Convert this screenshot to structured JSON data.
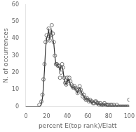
{
  "chart_data": {
    "type": "scatter",
    "x_label": "percent E(top rank)/Elatt",
    "y_label": "N. of occurrences",
    "xlim": [
      0,
      100
    ],
    "ylim": [
      0,
      60
    ],
    "xticks": [
      0,
      20,
      40,
      60,
      80,
      100
    ],
    "yticks": [
      0,
      10,
      20,
      30,
      40,
      50,
      60
    ],
    "grid": false,
    "series": [
      {
        "type": "line",
        "color": "#333333",
        "line_style": "solid",
        "x": [
          0,
          5,
          10,
          13,
          14,
          15,
          16,
          17,
          18,
          19,
          20,
          21,
          22,
          23,
          24,
          24.5,
          25,
          26,
          27,
          28,
          29,
          30,
          31,
          32,
          33,
          34,
          35,
          36,
          37,
          38,
          39,
          40,
          40.5,
          41,
          42,
          42.5,
          43,
          44,
          45,
          46,
          47,
          48,
          49,
          50,
          51,
          52,
          53,
          54,
          55,
          56,
          57,
          58,
          59,
          60,
          61,
          62,
          63,
          64,
          65,
          66,
          67,
          68,
          69,
          70,
          71,
          72,
          73,
          74,
          75,
          76,
          77,
          78,
          79,
          80,
          81,
          82,
          83,
          84,
          85,
          86,
          87,
          88,
          89,
          90,
          91,
          92,
          93,
          94,
          95,
          96,
          97,
          98,
          99,
          100
        ],
        "values": [
          0,
          0,
          0,
          0,
          0.3,
          1.5,
          5,
          12,
          22,
          34,
          40,
          42,
          45,
          40,
          43,
          45,
          43,
          40,
          37,
          30,
          25,
          25,
          24,
          23,
          21,
          24,
          24,
          21,
          16,
          14,
          13,
          16,
          15,
          16,
          15,
          14,
          13,
          12,
          11,
          11,
          11,
          10,
          9,
          8,
          10,
          11,
          10,
          8,
          7,
          6,
          5,
          4,
          5,
          4,
          4,
          3,
          3,
          2,
          3,
          3,
          2,
          2,
          1,
          2,
          1,
          1,
          1,
          1,
          1,
          1,
          1,
          0.5,
          0.2,
          0,
          0,
          0,
          0,
          0,
          0,
          0,
          0,
          0,
          0,
          0,
          0,
          0,
          0,
          0,
          0,
          0,
          0,
          0,
          0,
          0
        ]
      },
      {
        "type": "scatter",
        "color": "#555555",
        "marker": "open_circle",
        "x": [
          13,
          15,
          16,
          17,
          18,
          19,
          20,
          21,
          22,
          23,
          24,
          25,
          26,
          27,
          28,
          29,
          30,
          31,
          32,
          33,
          34,
          35,
          36,
          37,
          38,
          39,
          40,
          41,
          42,
          43,
          44,
          45,
          46,
          47,
          48,
          49,
          50,
          51,
          52,
          53,
          54,
          55,
          56,
          57,
          58,
          59,
          60,
          61,
          62,
          63,
          64,
          65,
          66,
          67,
          68,
          69,
          70,
          71,
          72,
          73,
          74,
          75,
          76,
          77,
          78,
          79,
          80,
          81,
          82,
          83,
          84,
          85,
          86,
          87,
          88,
          89,
          90,
          91,
          92,
          93,
          94,
          95,
          96,
          97,
          98,
          99,
          100
        ],
        "values": [
          1,
          3,
          7,
          16,
          25,
          38,
          42,
          40,
          46,
          39,
          42,
          48,
          43,
          38,
          30,
          25,
          25,
          24,
          24,
          17,
          20,
          25,
          23,
          17,
          14,
          13,
          17,
          15,
          17,
          15,
          13,
          12,
          11,
          12,
          11,
          10,
          8,
          10,
          12,
          10,
          8,
          6,
          7,
          5,
          4,
          5,
          4,
          3,
          4,
          3,
          3,
          2,
          2,
          3,
          3,
          2,
          2,
          1,
          2,
          1,
          1,
          1,
          2,
          1,
          1,
          1,
          1,
          0,
          1,
          1,
          0,
          1,
          0,
          0,
          1,
          0,
          0,
          0,
          0,
          0,
          0,
          0,
          0,
          0,
          0,
          0,
          4
        ]
      }
    ]
  }
}
